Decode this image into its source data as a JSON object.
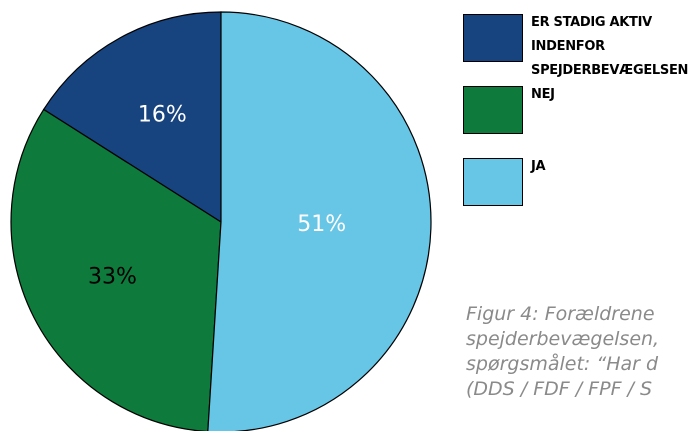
{
  "chart_data": {
    "type": "pie",
    "categories": [
      "ER STADIG AKTIV INDENFOR SPEJDERBEVÆGELSEN",
      "NEJ",
      "JA"
    ],
    "values": [
      16,
      33,
      51
    ],
    "value_labels": [
      "16%",
      "33%",
      "51%"
    ],
    "colors": [
      "#17437f",
      "#0e7a3b",
      "#67c5e6"
    ],
    "legend": "right",
    "caption": [
      "Figur 4: Forældrene",
      "spejderbevægelsen,",
      "spørgsmålet: “Har d",
      "(DDS / FDF / FPF / S"
    ]
  }
}
